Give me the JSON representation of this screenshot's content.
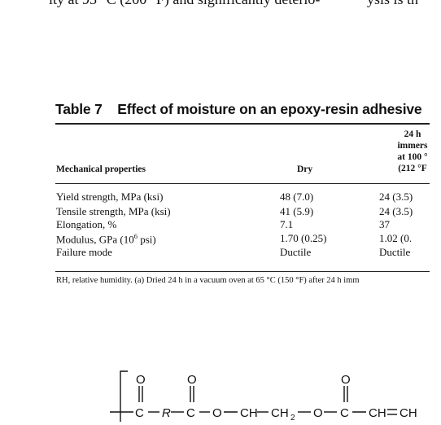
{
  "body_text": {
    "left": "ity at 93 °C (200 °F) and significantly deterio-",
    "right": "ysis is th"
  },
  "table": {
    "number": "Table 7",
    "title": "Effect of moisture on an epoxy-resin adhesive",
    "columns": {
      "property": "Mechanical properties",
      "dry": "Dry",
      "wet_lines": [
        "24 h",
        "immers",
        "at 100 °",
        "(212 °F"
      ]
    },
    "rows": [
      {
        "property": "Yield strength, MPa (ksi)",
        "dry": "48 (7.0)",
        "wet": "24 (3.5)"
      },
      {
        "property": "Tensile strength, MPa (ksi)",
        "dry": "41 (5.9)",
        "wet": "24 (3.5)"
      },
      {
        "property": "Elongation, %",
        "dry": "7.1",
        "wet": "37"
      },
      {
        "property_prefix": "Modulus, GPa (10",
        "property_sup": "6",
        "property_suffix": " psi)",
        "dry": "1.70 (0.25)",
        "wet": "1.02 (0."
      },
      {
        "property": "Failure mode",
        "dry": "Ductile",
        "wet": "Ductile"
      }
    ],
    "footnote": "RH, relative humidity. (a) Dried 24 h in a vacuum oven at 65 °C (150 °F) after 24 h imm"
  },
  "structure": {
    "atoms": [
      "O",
      "O",
      "O",
      "C",
      "R",
      "C",
      "O",
      "CH",
      "CH",
      "2",
      "O",
      "C",
      "CH",
      "CH"
    ]
  }
}
